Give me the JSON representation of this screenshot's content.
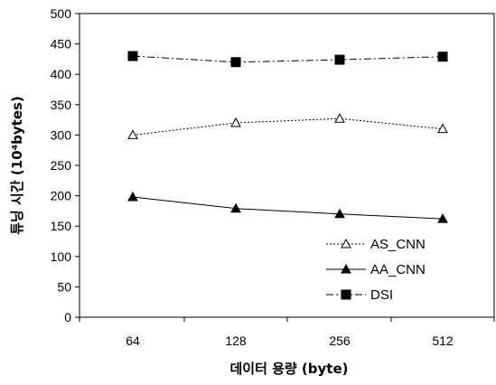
{
  "chart_data": {
    "type": "line",
    "title": "",
    "xlabel": "데이터 용량 (byte)",
    "ylabel": "튜닝 시간 (10⁴bytes)",
    "ylim": [
      0,
      500
    ],
    "yticks": [
      "0",
      "50",
      "100",
      "150",
      "200",
      "250",
      "300",
      "350",
      "400",
      "450",
      "500"
    ],
    "categories": [
      "64",
      "128",
      "256",
      "512"
    ],
    "grid": false,
    "legend_position": "bottom-right",
    "series": [
      {
        "name": "AS_CNN",
        "values": [
          300,
          320,
          327,
          310
        ],
        "marker": "open-triangle",
        "line": "dotted",
        "color": "#000000"
      },
      {
        "name": "AA_CNN",
        "values": [
          198,
          179,
          170,
          162
        ],
        "marker": "filled-triangle",
        "line": "solid",
        "color": "#000000"
      },
      {
        "name": "DSI",
        "values": [
          430,
          420,
          424,
          429
        ],
        "marker": "filled-square",
        "line": "dash-dot",
        "color": "#000000"
      }
    ]
  }
}
